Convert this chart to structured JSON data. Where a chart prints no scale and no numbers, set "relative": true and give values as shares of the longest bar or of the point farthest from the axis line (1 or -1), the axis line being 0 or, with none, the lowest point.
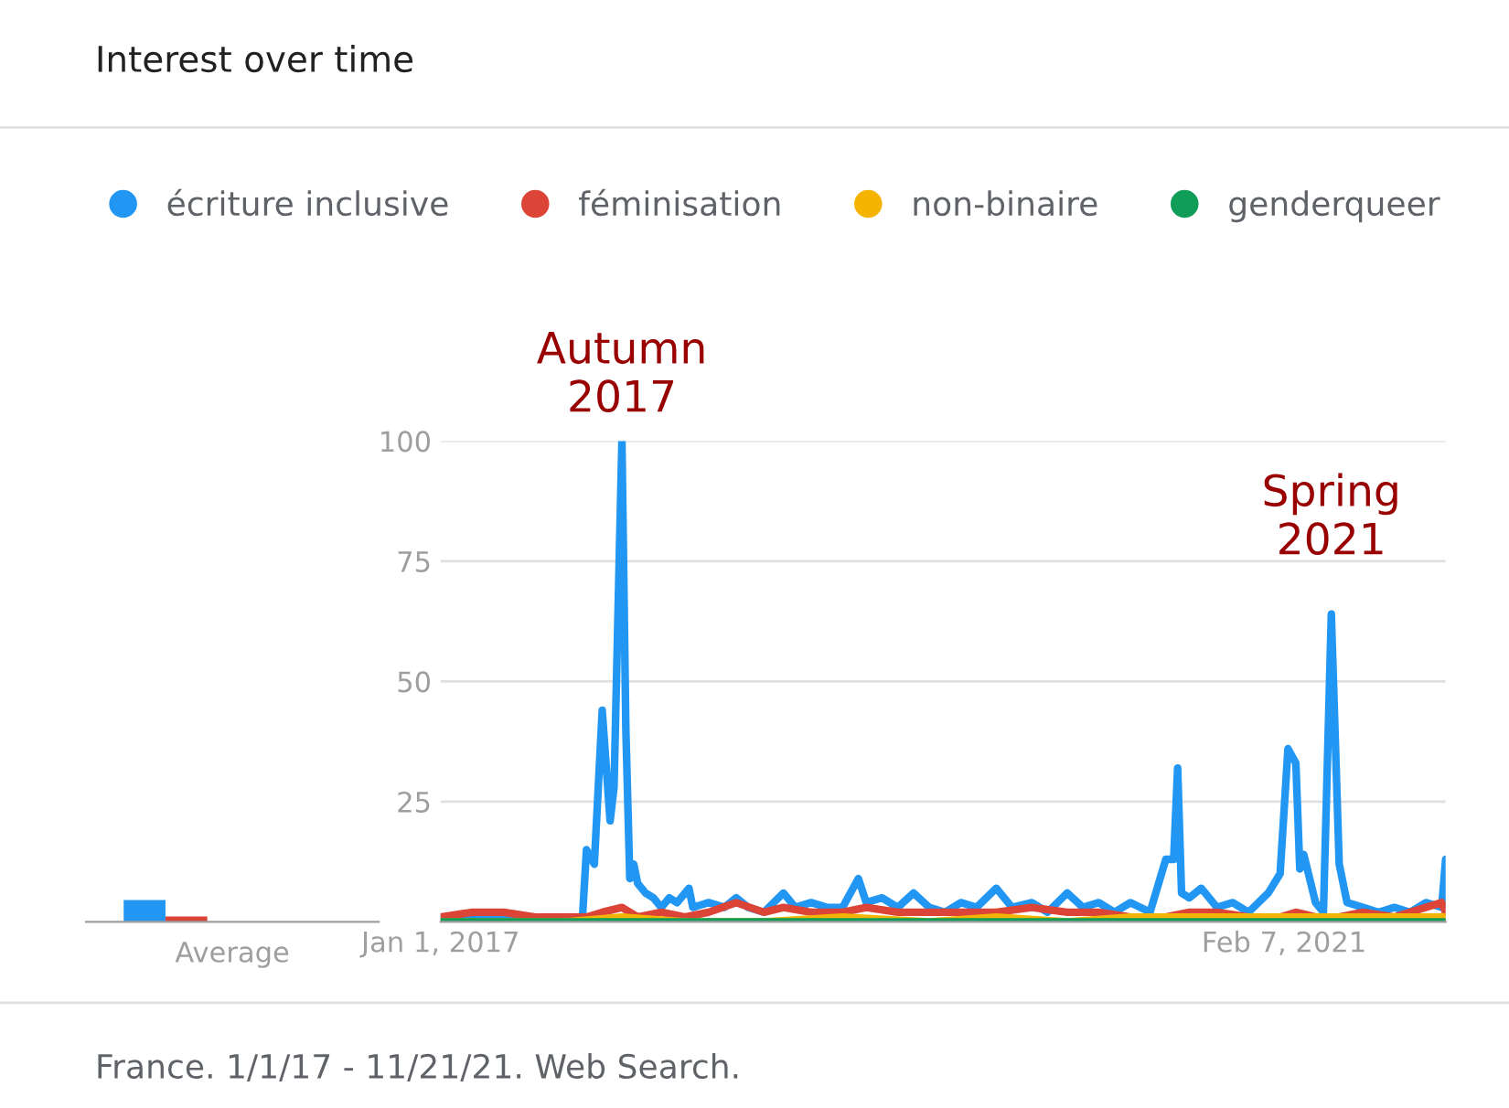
{
  "chart_data": [
    {
      "type": "bar",
      "xlabel": "Average",
      "categories": [
        null,
        null
      ],
      "values": [
        1,
        0.25
      ],
      "colors": [
        "#2196f3",
        "#db4437"
      ],
      "relative": true
    },
    {
      "type": "line",
      "title": "Interest over time",
      "legend": "top left",
      "grid": "y",
      "line_style": "solid",
      "marker": "none",
      "xlim": [
        "2017-01-01",
        "2021-11-21"
      ],
      "xticks": [
        {
          "value": "2017-01-01",
          "label": "Jan 1, 2017"
        },
        {
          "value": "2021-02-07",
          "label": "Feb 7, 2021"
        }
      ],
      "ylim": [
        0,
        100
      ],
      "yticks": [
        {
          "value": 0,
          "label": null
        },
        25,
        50,
        75,
        100
      ],
      "series": [
        {
          "name": "écriture inclusive",
          "color": "#2196f3",
          "x": [
            "2017-01-01",
            "2017-02-26",
            "2017-04-23",
            "2017-06-18",
            "2017-08-13",
            "2017-09-10",
            "2017-09-17",
            "2017-10-01",
            "2017-10-15",
            "2017-10-29",
            "2017-11-05",
            "2017-11-19",
            "2017-11-26",
            "2017-12-03",
            "2017-12-10",
            "2017-12-17",
            "2017-12-31",
            "2018-01-14",
            "2018-01-28",
            "2018-02-11",
            "2018-02-25",
            "2018-03-11",
            "2018-03-18",
            "2018-03-25",
            "2018-04-22",
            "2018-05-20",
            "2018-06-10",
            "2018-07-01",
            "2018-07-29",
            "2018-09-02",
            "2018-09-23",
            "2018-10-21",
            "2018-11-18",
            "2018-12-16",
            "2019-01-13",
            "2019-01-27",
            "2019-02-24",
            "2019-03-24",
            "2019-04-21",
            "2019-05-19",
            "2019-06-16",
            "2019-07-14",
            "2019-08-11",
            "2019-09-15",
            "2019-10-13",
            "2019-11-17",
            "2019-12-15",
            "2020-01-19",
            "2020-02-16",
            "2020-03-15",
            "2020-04-12",
            "2020-05-10",
            "2020-06-14",
            "2020-07-12",
            "2020-07-26",
            "2020-08-02",
            "2020-08-09",
            "2020-08-23",
            "2020-09-13",
            "2020-10-11",
            "2020-11-08",
            "2020-12-06",
            "2021-01-10",
            "2021-01-31",
            "2021-02-14",
            "2021-02-28",
            "2021-03-07",
            "2021-03-14",
            "2021-04-04",
            "2021-04-18",
            "2021-05-02",
            "2021-05-16",
            "2021-05-30",
            "2021-06-27",
            "2021-07-25",
            "2021-08-22",
            "2021-09-19",
            "2021-10-17",
            "2021-11-14",
            "2021-11-21"
          ],
          "values": [
            1,
            1,
            1,
            1,
            1,
            1,
            15,
            12,
            44,
            21,
            28,
            100,
            40,
            9,
            12,
            8,
            6,
            5,
            3,
            5,
            4,
            6,
            7,
            3,
            4,
            3,
            5,
            3,
            2,
            6,
            3,
            4,
            3,
            3,
            9,
            4,
            5,
            3,
            6,
            3,
            2,
            4,
            3,
            7,
            3,
            4,
            2,
            6,
            3,
            4,
            2,
            4,
            2,
            13,
            13,
            32,
            6,
            5,
            7,
            3,
            4,
            2,
            6,
            10,
            36,
            33,
            11,
            14,
            4,
            2,
            64,
            12,
            4,
            3,
            2,
            3,
            2,
            4,
            3,
            13
          ]
        },
        {
          "name": "féminisation",
          "color": "#db4437",
          "x": [
            "2017-01-01",
            "2017-02-26",
            "2017-04-23",
            "2017-06-18",
            "2017-08-13",
            "2017-09-17",
            "2017-10-15",
            "2017-11-19",
            "2017-12-17",
            "2018-01-28",
            "2018-03-11",
            "2018-04-22",
            "2018-06-10",
            "2018-07-29",
            "2018-09-02",
            "2018-10-21",
            "2018-12-16",
            "2019-01-27",
            "2019-03-24",
            "2019-05-19",
            "2019-07-14",
            "2019-09-15",
            "2019-11-17",
            "2020-01-19",
            "2020-03-15",
            "2020-05-10",
            "2020-07-12",
            "2020-08-23",
            "2020-10-11",
            "2020-12-06",
            "2021-01-31",
            "2021-02-28",
            "2021-04-04",
            "2021-05-16",
            "2021-06-27",
            "2021-08-22",
            "2021-10-17",
            "2021-11-14",
            "2021-11-21"
          ],
          "values": [
            1,
            2,
            2,
            1,
            1,
            1,
            2,
            3,
            1,
            2,
            1,
            2,
            4,
            2,
            3,
            2,
            2,
            3,
            2,
            2,
            2,
            2,
            3,
            2,
            2,
            1,
            1,
            2,
            2,
            1,
            1,
            2,
            1,
            1,
            2,
            1,
            3,
            4,
            2
          ]
        },
        {
          "name": "non-binaire",
          "color": "#f4b400",
          "x": [
            "2017-01-01",
            "2017-04-23",
            "2017-08-13",
            "2017-11-19",
            "2018-03-11",
            "2018-07-29",
            "2018-12-16",
            "2019-05-19",
            "2019-09-15",
            "2020-01-19",
            "2020-05-10",
            "2020-08-23",
            "2020-12-06",
            "2021-02-28",
            "2021-06-27",
            "2021-10-17",
            "2021-11-21"
          ],
          "values": [
            0,
            0,
            0,
            1,
            0,
            0,
            1,
            0,
            1,
            0,
            1,
            1,
            1,
            1,
            1,
            1,
            1
          ]
        },
        {
          "name": "genderqueer",
          "color": "#0f9d58",
          "x": [
            "2017-01-01",
            "2017-04-23",
            "2017-08-13",
            "2017-11-19",
            "2018-03-11",
            "2018-07-29",
            "2018-12-16",
            "2019-05-19",
            "2019-09-15",
            "2020-01-19",
            "2020-05-10",
            "2020-08-23",
            "2020-12-06",
            "2021-02-28",
            "2021-06-27",
            "2021-10-17",
            "2021-11-21"
          ],
          "values": [
            0,
            0,
            0,
            0,
            0,
            0,
            0,
            0,
            0,
            0,
            0,
            0,
            0,
            0,
            0,
            0,
            0
          ]
        }
      ],
      "annotations": [
        {
          "text": "Autumn\n2017",
          "x": "2017-11-19",
          "y": 100
        },
        {
          "text": "Spring\n2021",
          "x": "2021-05-02",
          "y": 64
        },
        "France. 1/1/17 - 11/21/21. Web Search."
      ]
    }
  ]
}
